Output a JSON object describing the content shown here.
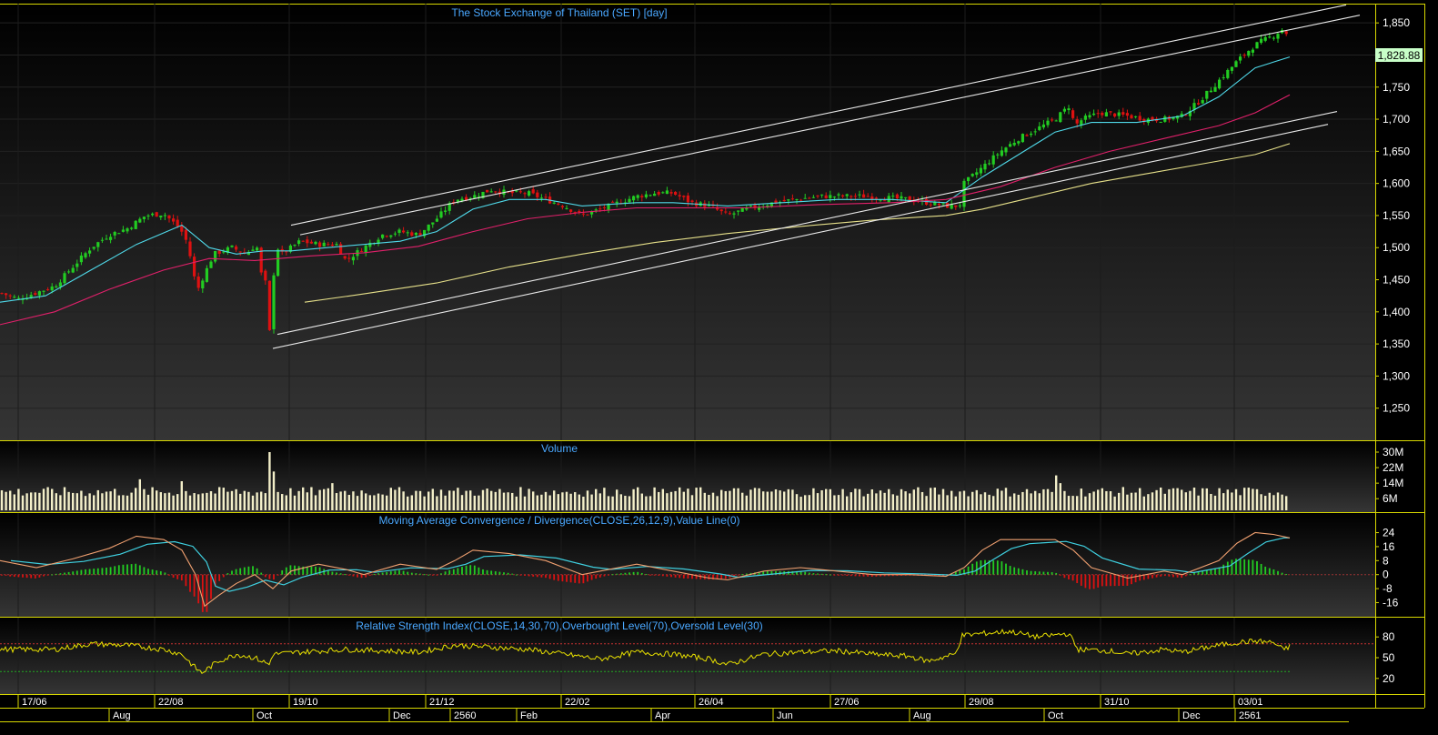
{
  "colors": {
    "frame": "#d8d800",
    "title": "#4aa8ff",
    "axis_text": "#ffffff",
    "up": "#22cc22",
    "down": "#dd1111",
    "ma_fast": "#4fd8e8",
    "ma_mid": "#e0206a",
    "ma_slow": "#e6e08a",
    "channel": "#e8e8e8",
    "volume": "#f3efc9",
    "macd": "#f0a070",
    "macd_signal": "#3fd0e0",
    "hist_up": "#22cc22",
    "hist_down": "#dd1111",
    "rsi": "#e8e000",
    "rsi_overbought": "#cc3333",
    "rsi_oversold": "#22aa22",
    "last_price_bg": "#c8ffc8"
  },
  "chart_data": [
    {
      "type": "candlestick",
      "title": "The Stock Exchange of Thailand (SET) [day]",
      "ylim": [
        1200,
        1880
      ],
      "yticks": [
        "1,850",
        "1,800",
        "1,750",
        "1,700",
        "1,650",
        "1,600",
        "1,550",
        "1,500",
        "1,450",
        "1,400",
        "1,350",
        "1,300",
        "1,250"
      ],
      "last_price_label": "1,828.88",
      "close_path": {
        "x": [
          0,
          20,
          40,
          60,
          80,
          100,
          120,
          140,
          160,
          180,
          190,
          198,
          205,
          212,
          216,
          222,
          235,
          255,
          270,
          282,
          287,
          292,
          296,
          300,
          305,
          310,
          330,
          350,
          370,
          380,
          400,
          420,
          440,
          460,
          480,
          500,
          520,
          540,
          560,
          580,
          600,
          620,
          640,
          660,
          680,
          700,
          720,
          740,
          760,
          780,
          800,
          820,
          850,
          900,
          950,
          1000,
          1040,
          1055,
          1060,
          1080,
          1100,
          1120,
          1140,
          1160,
          1175,
          1182,
          1190,
          1210,
          1240,
          1260,
          1280,
          1300,
          1320,
          1340,
          1360,
          1375,
          1385,
          1400,
          1410,
          1418
        ],
        "y": [
          1430,
          1420,
          1430,
          1440,
          1470,
          1500,
          1520,
          1530,
          1550,
          1553,
          1540,
          1530,
          1510,
          1470,
          1430,
          1450,
          1490,
          1500,
          1490,
          1505,
          1460,
          1445,
          1360,
          1450,
          1500,
          1490,
          1510,
          1505,
          1505,
          1480,
          1500,
          1520,
          1525,
          1520,
          1545,
          1575,
          1580,
          1590,
          1585,
          1585,
          1575,
          1565,
          1550,
          1560,
          1570,
          1580,
          1585,
          1585,
          1570,
          1565,
          1550,
          1560,
          1570,
          1580,
          1580,
          1575,
          1565,
          1565,
          1600,
          1625,
          1650,
          1670,
          1685,
          1700,
          1720,
          1690,
          1700,
          1710,
          1705,
          1700,
          1700,
          1705,
          1730,
          1760,
          1790,
          1810,
          1820,
          1830,
          1840,
          1828.88
        ]
      },
      "moving_averages": [
        {
          "x": [
            0,
            50,
            100,
            150,
            200,
            230,
            260,
            290,
            320,
            360,
            400,
            440,
            480,
            520,
            560,
            600,
            640,
            700,
            740,
            800,
            860,
            920,
            980,
            1040,
            1080,
            1120,
            1160,
            1200,
            1250,
            1300,
            1340,
            1380,
            1418
          ],
          "y": [
            1415,
            1425,
            1465,
            1505,
            1535,
            1500,
            1490,
            1495,
            1495,
            1500,
            1505,
            1510,
            1525,
            1560,
            1575,
            1575,
            1565,
            1570,
            1570,
            1565,
            1570,
            1575,
            1575,
            1570,
            1610,
            1645,
            1680,
            1695,
            1695,
            1705,
            1735,
            1780,
            1797
          ]
        },
        {
          "x": [
            0,
            60,
            120,
            180,
            230,
            280,
            340,
            400,
            460,
            520,
            580,
            640,
            700,
            760,
            820,
            900,
            980,
            1040,
            1100,
            1160,
            1220,
            1280,
            1340,
            1380,
            1418
          ],
          "y": [
            1380,
            1400,
            1435,
            1465,
            1483,
            1480,
            1487,
            1492,
            1502,
            1525,
            1545,
            1555,
            1562,
            1562,
            1562,
            1567,
            1570,
            1575,
            1595,
            1625,
            1650,
            1670,
            1690,
            1710,
            1738
          ]
        },
        {
          "x": [
            335,
            400,
            480,
            560,
            640,
            720,
            800,
            880,
            960,
            1040,
            1080,
            1140,
            1200,
            1260,
            1320,
            1380,
            1418
          ],
          "y": [
            1415,
            1428,
            1445,
            1470,
            1490,
            1508,
            1522,
            1533,
            1543,
            1550,
            1560,
            1580,
            1600,
            1615,
            1630,
            1645,
            1662
          ]
        }
      ],
      "channel_lines": [
        {
          "x": [
            320,
            1480
          ],
          "y": [
            1535,
            1878
          ]
        },
        {
          "x": [
            330,
            1495
          ],
          "y": [
            1520,
            1862
          ]
        },
        {
          "x": [
            305,
            1470
          ],
          "y": [
            1365,
            1712
          ]
        },
        {
          "x": [
            300,
            1460
          ],
          "y": [
            1343,
            1692
          ]
        }
      ]
    },
    {
      "type": "bar",
      "title": "Volume",
      "ylim": [
        0,
        30
      ],
      "yticks": [
        "30M",
        "22M",
        "14M",
        "6M"
      ]
    },
    {
      "type": "line",
      "title": "Moving Average Convergence / Divergence(CLOSE,26,12,9),Value Line(0)",
      "ylim": [
        -22,
        30
      ],
      "yticks": [
        "24",
        "16",
        "8",
        "0",
        "-8",
        "-16"
      ]
    },
    {
      "type": "line",
      "title": "Relative Strength Index(CLOSE,14,30,70),Overbought Level(70),Oversold Level(30)",
      "ylim": [
        0,
        100
      ],
      "yticks": [
        "80",
        "50",
        "20"
      ],
      "overbought": 70,
      "oversold": 30
    }
  ],
  "x_axis": {
    "upper_labels": [
      "17/06",
      "22/08",
      "19/10",
      "21/12",
      "22/02",
      "26/04",
      "27/06",
      "29/08",
      "31/10",
      "03/01"
    ],
    "lower_labels": [
      "Aug",
      "Oct",
      "Dec",
      "2560",
      "Feb",
      "Apr",
      "Jun",
      "Aug",
      "Oct",
      "Dec",
      "2561"
    ]
  }
}
